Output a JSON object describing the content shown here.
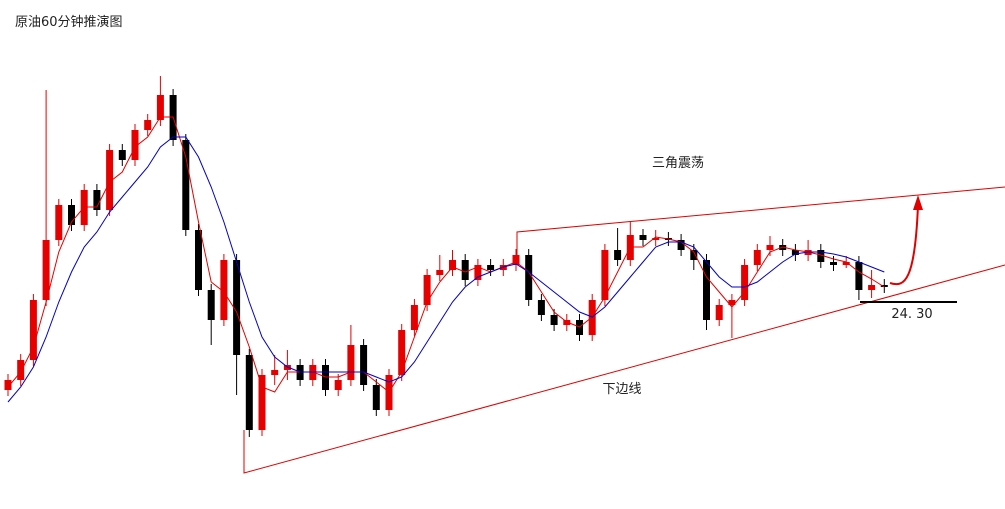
{
  "chart_data": {
    "type": "candlestick",
    "title": "原油60分钟推演图",
    "annotations": [
      "三角震荡",
      "下边线"
    ],
    "support": {
      "value": 24.3,
      "label": "24. 30"
    },
    "ylim": [
      22.23,
      27.32
    ],
    "up_color": "#e60000",
    "down_color": "#000000",
    "candles": {
      "open": [
        23.42,
        23.52,
        23.72,
        24.32,
        24.92,
        25.27,
        25.07,
        25.42,
        25.22,
        25.82,
        25.72,
        26.02,
        26.12,
        26.37,
        25.92,
        25.02,
        24.42,
        24.12,
        24.72,
        23.77,
        23.02,
        23.57,
        23.62,
        23.67,
        23.52,
        23.67,
        23.42,
        23.52,
        23.87,
        23.47,
        23.22,
        23.57,
        24.02,
        24.27,
        24.57,
        24.62,
        24.72,
        24.52,
        24.67,
        24.62,
        24.67,
        24.77,
        24.32,
        24.17,
        24.07,
        24.12,
        23.97,
        24.32,
        24.82,
        24.72,
        24.97,
        24.92,
        24.94,
        24.92,
        24.82,
        24.72,
        24.12,
        24.27,
        24.32,
        24.67,
        24.82,
        24.87,
        24.82,
        24.77,
        24.82,
        24.7,
        24.67,
        24.7,
        24.42,
        24.47
      ],
      "high": [
        23.58,
        23.78,
        24.38,
        26.42,
        25.33,
        25.33,
        25.48,
        25.48,
        25.88,
        25.88,
        26.08,
        26.18,
        26.56,
        26.43,
        25.98,
        25.08,
        24.48,
        24.78,
        24.78,
        23.83,
        23.63,
        23.77,
        23.82,
        23.73,
        23.73,
        23.73,
        23.58,
        24.07,
        23.93,
        23.53,
        23.63,
        24.08,
        24.33,
        24.63,
        24.77,
        24.82,
        24.78,
        24.73,
        24.73,
        24.73,
        24.83,
        24.83,
        24.38,
        24.23,
        24.18,
        24.18,
        24.38,
        24.88,
        25.04,
        25.1,
        25.03,
        25.02,
        25.0,
        24.98,
        24.88,
        24.78,
        24.33,
        24.38,
        24.73,
        24.88,
        24.96,
        24.93,
        24.88,
        24.92,
        24.88,
        24.76,
        24.76,
        24.76,
        24.62,
        24.53
      ],
      "low": [
        23.36,
        23.46,
        23.66,
        24.26,
        24.86,
        25.01,
        25.01,
        25.16,
        25.16,
        25.66,
        25.66,
        25.96,
        26.06,
        25.86,
        24.96,
        24.36,
        23.87,
        24.06,
        23.37,
        22.95,
        22.96,
        23.47,
        23.52,
        23.46,
        23.46,
        23.36,
        23.36,
        23.46,
        23.41,
        23.16,
        23.16,
        23.51,
        23.96,
        24.21,
        24.51,
        24.56,
        24.46,
        24.46,
        24.56,
        24.56,
        24.61,
        24.26,
        24.11,
        24.01,
        24.01,
        23.91,
        23.91,
        24.26,
        24.66,
        24.66,
        24.86,
        24.86,
        24.86,
        24.76,
        24.62,
        24.02,
        24.06,
        23.94,
        24.26,
        24.61,
        24.76,
        24.76,
        24.71,
        24.71,
        24.64,
        24.61,
        24.64,
        24.32,
        24.34,
        24.39
      ],
      "close": [
        23.52,
        23.72,
        24.32,
        24.92,
        25.27,
        25.07,
        25.42,
        25.22,
        25.82,
        25.72,
        26.02,
        26.12,
        26.37,
        25.92,
        25.02,
        24.42,
        24.12,
        24.72,
        23.77,
        23.02,
        23.57,
        23.62,
        23.67,
        23.52,
        23.67,
        23.42,
        23.52,
        23.87,
        23.47,
        23.22,
        23.57,
        24.02,
        24.27,
        24.57,
        24.62,
        24.72,
        24.52,
        24.67,
        24.62,
        24.67,
        24.77,
        24.32,
        24.17,
        24.07,
        24.12,
        23.97,
        24.32,
        24.82,
        24.72,
        24.97,
        24.92,
        24.94,
        24.92,
        24.82,
        24.72,
        24.12,
        24.27,
        24.32,
        24.67,
        24.82,
        24.87,
        24.82,
        24.77,
        24.82,
        24.7,
        24.67,
        24.7,
        24.42,
        24.47,
        24.45
      ]
    },
    "lines": [
      {
        "color": "#e60000",
        "values": [
          23.45,
          23.6,
          23.85,
          24.3,
          24.8,
          25.1,
          25.25,
          25.25,
          25.5,
          25.6,
          25.85,
          25.95,
          26.15,
          26.15,
          25.75,
          25.1,
          24.5,
          24.4,
          24.2,
          23.85,
          23.45,
          23.4,
          23.6,
          23.6,
          23.6,
          23.55,
          23.55,
          23.6,
          23.6,
          23.5,
          23.4,
          23.6,
          23.95,
          24.3,
          24.5,
          24.65,
          24.6,
          24.65,
          24.6,
          24.65,
          24.7,
          24.6,
          24.4,
          24.2,
          24.1,
          24.05,
          24.15,
          24.35,
          24.6,
          24.85,
          24.85,
          24.95,
          24.93,
          24.9,
          24.8,
          24.55,
          24.4,
          24.25,
          24.4,
          24.6,
          24.8,
          24.85,
          24.82,
          24.8,
          24.77,
          24.73,
          24.7,
          24.6,
          24.53,
          24.45
        ]
      },
      {
        "color": "#0000cc",
        "values": [
          23.3,
          23.45,
          23.65,
          23.95,
          24.3,
          24.6,
          24.85,
          25.0,
          25.2,
          25.35,
          25.5,
          25.65,
          25.85,
          25.95,
          25.95,
          25.75,
          25.45,
          25.1,
          24.7,
          24.3,
          23.95,
          23.75,
          23.65,
          23.6,
          23.6,
          23.6,
          23.6,
          23.6,
          23.6,
          23.55,
          23.5,
          23.55,
          23.7,
          23.9,
          24.1,
          24.3,
          24.45,
          24.55,
          24.6,
          24.65,
          24.68,
          24.6,
          24.5,
          24.4,
          24.3,
          24.2,
          24.15,
          24.25,
          24.4,
          24.55,
          24.7,
          24.85,
          24.9,
          24.9,
          24.85,
          24.7,
          24.55,
          24.45,
          24.45,
          24.5,
          24.6,
          24.7,
          24.78,
          24.8,
          24.8,
          24.78,
          24.75,
          24.7,
          24.65,
          24.6
        ]
      }
    ]
  }
}
